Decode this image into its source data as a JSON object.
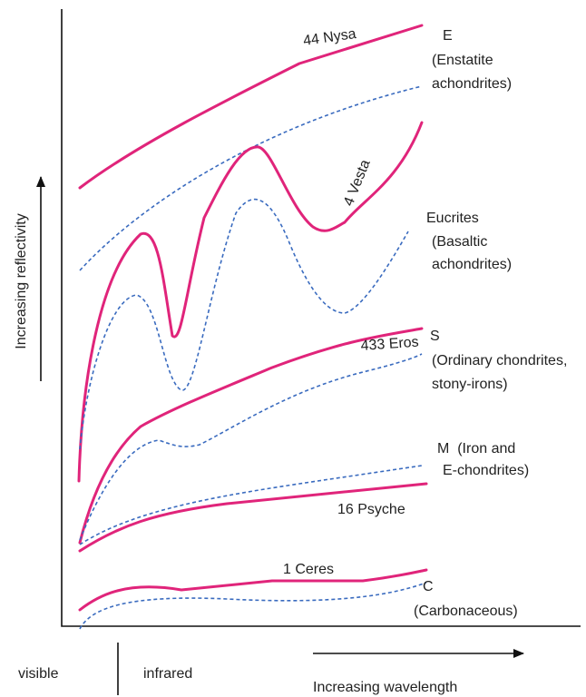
{
  "axes": {
    "y_label": "Increasing reflectivity",
    "x_label": "Increasing wavelength",
    "region_left": "visible",
    "region_right": "infrared"
  },
  "asteroids": [
    "44 Nysa",
    "4 Vesta",
    "433 Eros",
    "16 Psyche",
    "1 Ceres"
  ],
  "meteorites": [
    [
      "E",
      "(Enstatite",
      "achondrites)"
    ],
    [
      "Eucrites",
      "(Basaltic",
      "achondrites)"
    ],
    [
      "S",
      "(Ordinary chondrites,",
      "stony-irons)"
    ],
    [
      "M  (Iron and",
      "E-chondrites)"
    ],
    [
      "C",
      "(Carbonaceous)"
    ]
  ]
}
